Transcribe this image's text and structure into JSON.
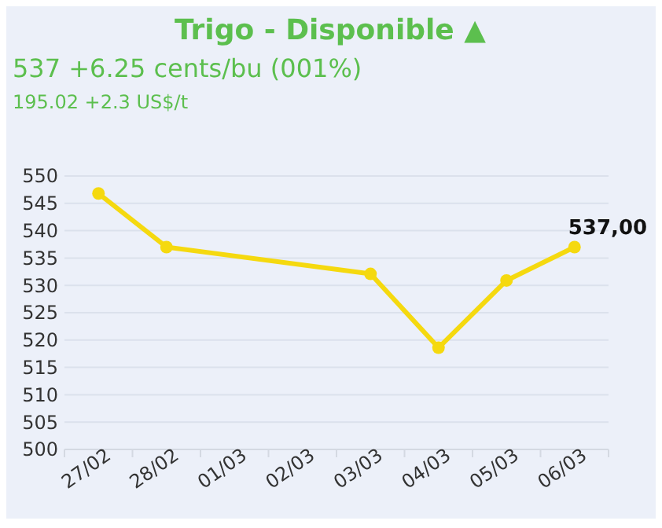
{
  "chart_data": {
    "type": "line",
    "title": "Trigo - Disponible ▲",
    "subtitle": "537 +6.25 cents/bu (001%)",
    "annotations": [
      "195.02 +2.3 US$/t"
    ],
    "categories": [
      "27/02",
      "28/02",
      "01/03",
      "02/03",
      "03/03",
      "04/03",
      "05/03",
      "06/03"
    ],
    "series": [
      {
        "color": "#f5d90f",
        "values": [
          546.8,
          537,
          null,
          null,
          532.1,
          518.6,
          530.9,
          537
        ],
        "value_labels": [
          null,
          null,
          null,
          null,
          null,
          null,
          null,
          "537,00"
        ]
      }
    ],
    "ylim": [
      500,
      550
    ],
    "yticks": [
      500,
      505,
      510,
      515,
      520,
      525,
      530,
      535,
      540,
      545,
      550
    ],
    "grid": "y",
    "marker": "circle"
  }
}
